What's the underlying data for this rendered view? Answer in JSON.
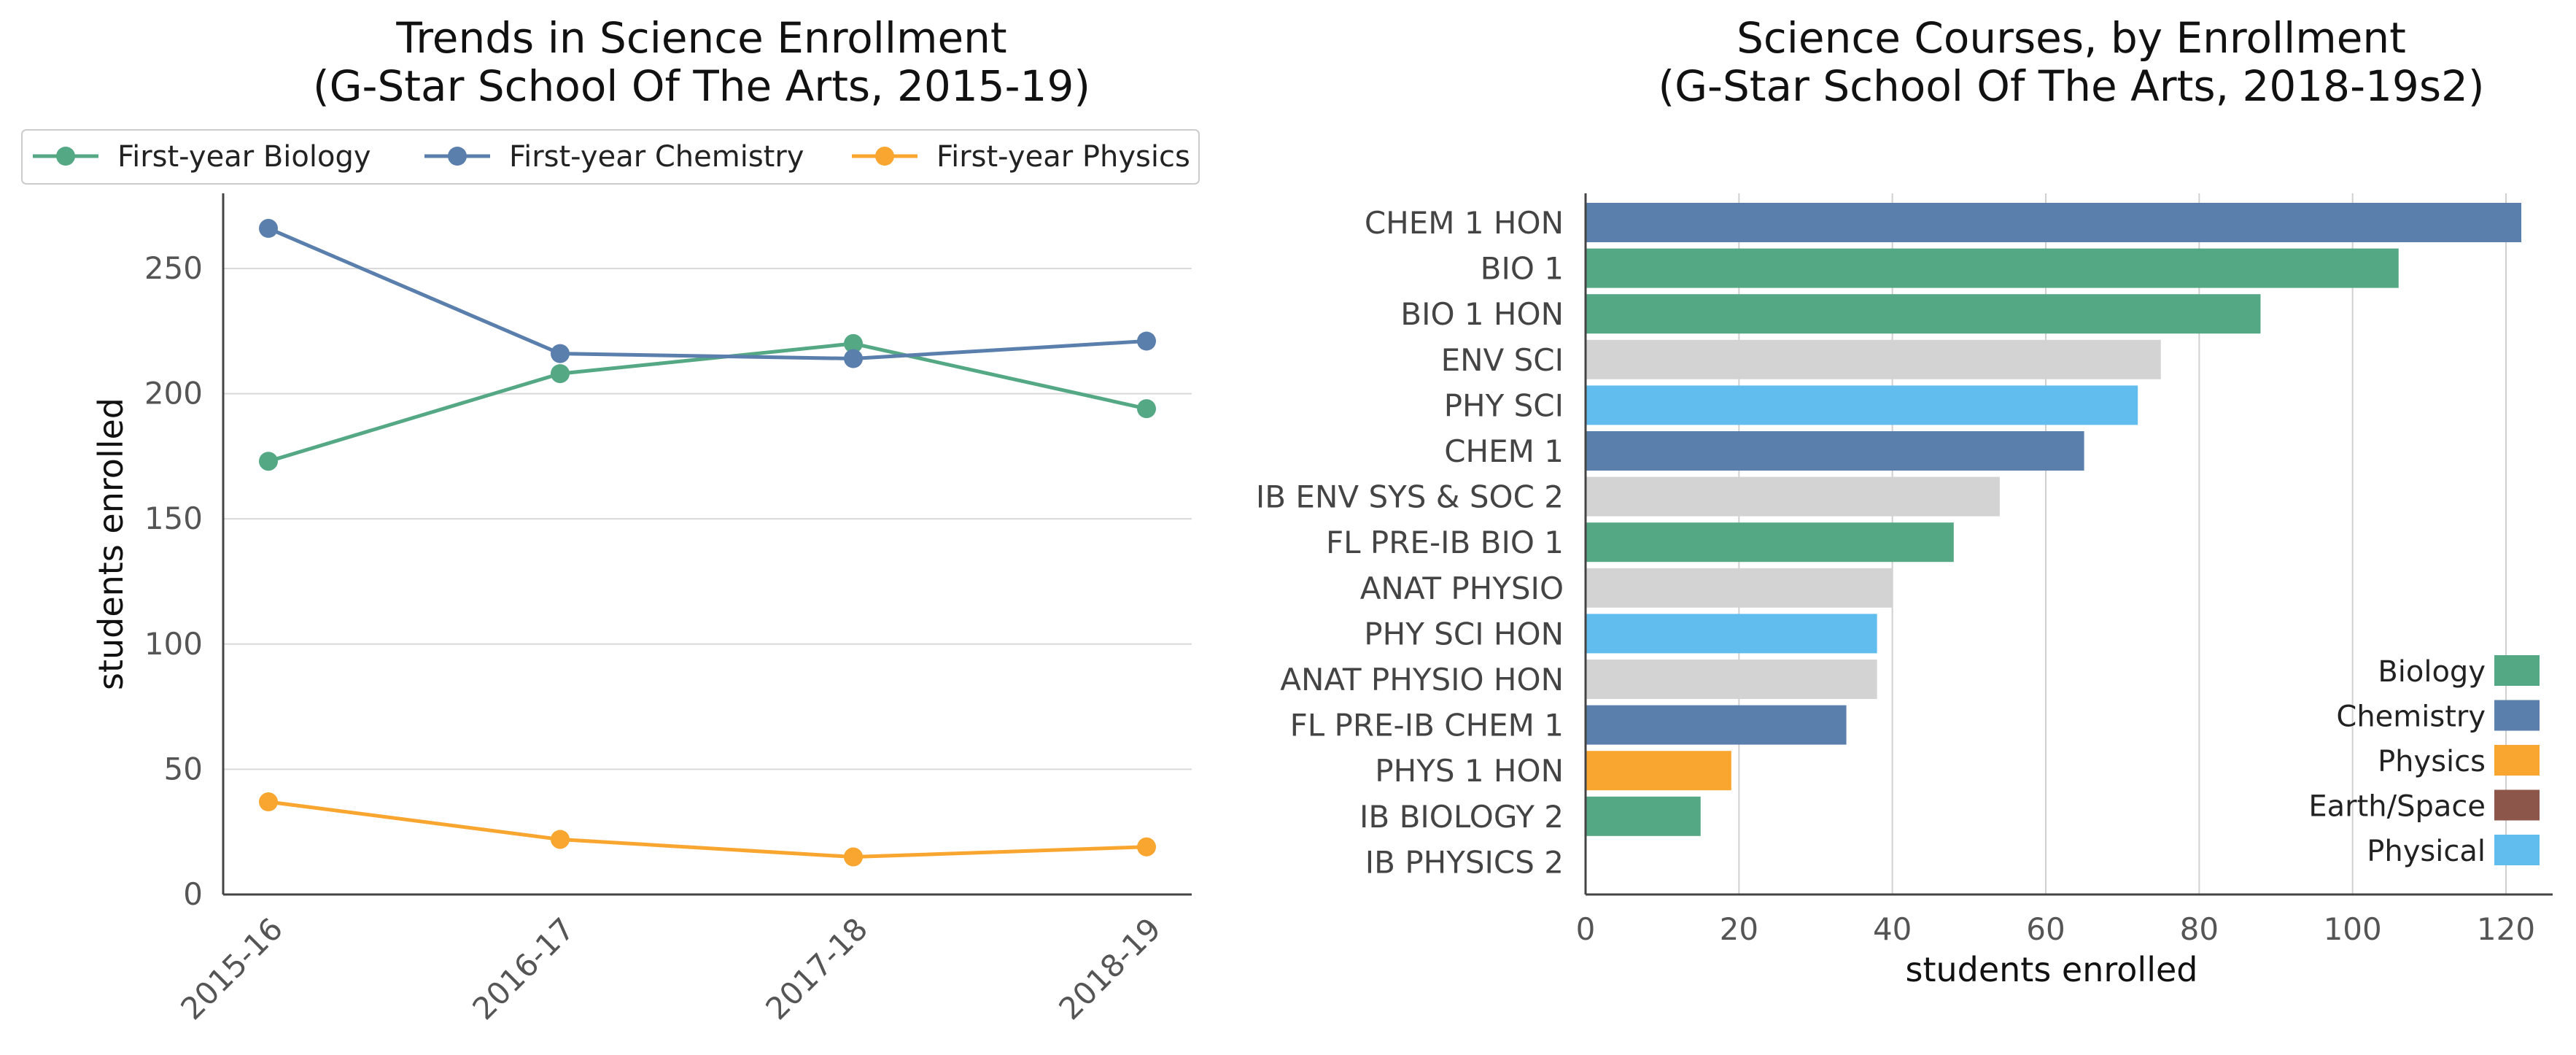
{
  "chart_data": [
    {
      "type": "line",
      "title_line1": "Trends in Science Enrollment",
      "title_line2": "(G-Star School Of The Arts, 2015-19)",
      "ylabel": "students enrolled",
      "xlabel": "",
      "categories": [
        "2015-16",
        "2016-17",
        "2017-18",
        "2018-19"
      ],
      "ylim": [
        0,
        280
      ],
      "yticks": [
        0,
        50,
        100,
        150,
        200,
        250
      ],
      "grid": true,
      "legend_position": "top",
      "series": [
        {
          "name": "First-year Biology",
          "color": "#55a884",
          "values": [
            173,
            208,
            220,
            194
          ]
        },
        {
          "name": "First-year Chemistry",
          "color": "#5b7fad",
          "values": [
            266,
            216,
            214,
            221
          ]
        },
        {
          "name": "First-year Physics",
          "color": "#f9a630",
          "values": [
            37,
            22,
            15,
            19
          ]
        }
      ]
    },
    {
      "type": "bar",
      "orientation": "horizontal",
      "title_line1": "Science Courses, by Enrollment",
      "title_line2": "(G-Star School Of The Arts, 2018-19s2)",
      "xlabel": "students enrolled",
      "ylabel": "",
      "xlim": [
        0,
        128
      ],
      "xticks": [
        0,
        20,
        40,
        60,
        80,
        100,
        120
      ],
      "grid": true,
      "legend_position": "bottom-right",
      "categories": [
        "CHEM 1 HON",
        "BIO 1",
        "BIO 1 HON",
        "ENV SCI",
        "PHY SCI",
        "CHEM 1",
        "IB ENV SYS & SOC 2",
        "FL PRE-IB BIO 1",
        "ANAT PHYSIO",
        "PHY SCI HON",
        "ANAT PHYSIO HON",
        "FL PRE-IB CHEM 1",
        "PHYS 1 HON",
        "IB BIOLOGY 2",
        "IB PHYSICS 2"
      ],
      "values": [
        122,
        106,
        88,
        75,
        72,
        65,
        54,
        48,
        40,
        38,
        38,
        34,
        19,
        15,
        0
      ],
      "bar_colors": [
        "#5b7fad",
        "#55a884",
        "#55a884",
        "#d3d3d3",
        "#61bdee",
        "#5b7fad",
        "#d3d3d3",
        "#55a884",
        "#d3d3d3",
        "#61bdee",
        "#d3d3d3",
        "#5b7fad",
        "#f9a630",
        "#55a884",
        "#f9a630"
      ],
      "legend": [
        {
          "name": "Biology",
          "color": "#55a884"
        },
        {
          "name": "Chemistry",
          "color": "#5b7fad"
        },
        {
          "name": "Physics",
          "color": "#f9a630"
        },
        {
          "name": "Earth/Space",
          "color": "#8c564b"
        },
        {
          "name": "Physical",
          "color": "#61bdee"
        }
      ]
    }
  ]
}
